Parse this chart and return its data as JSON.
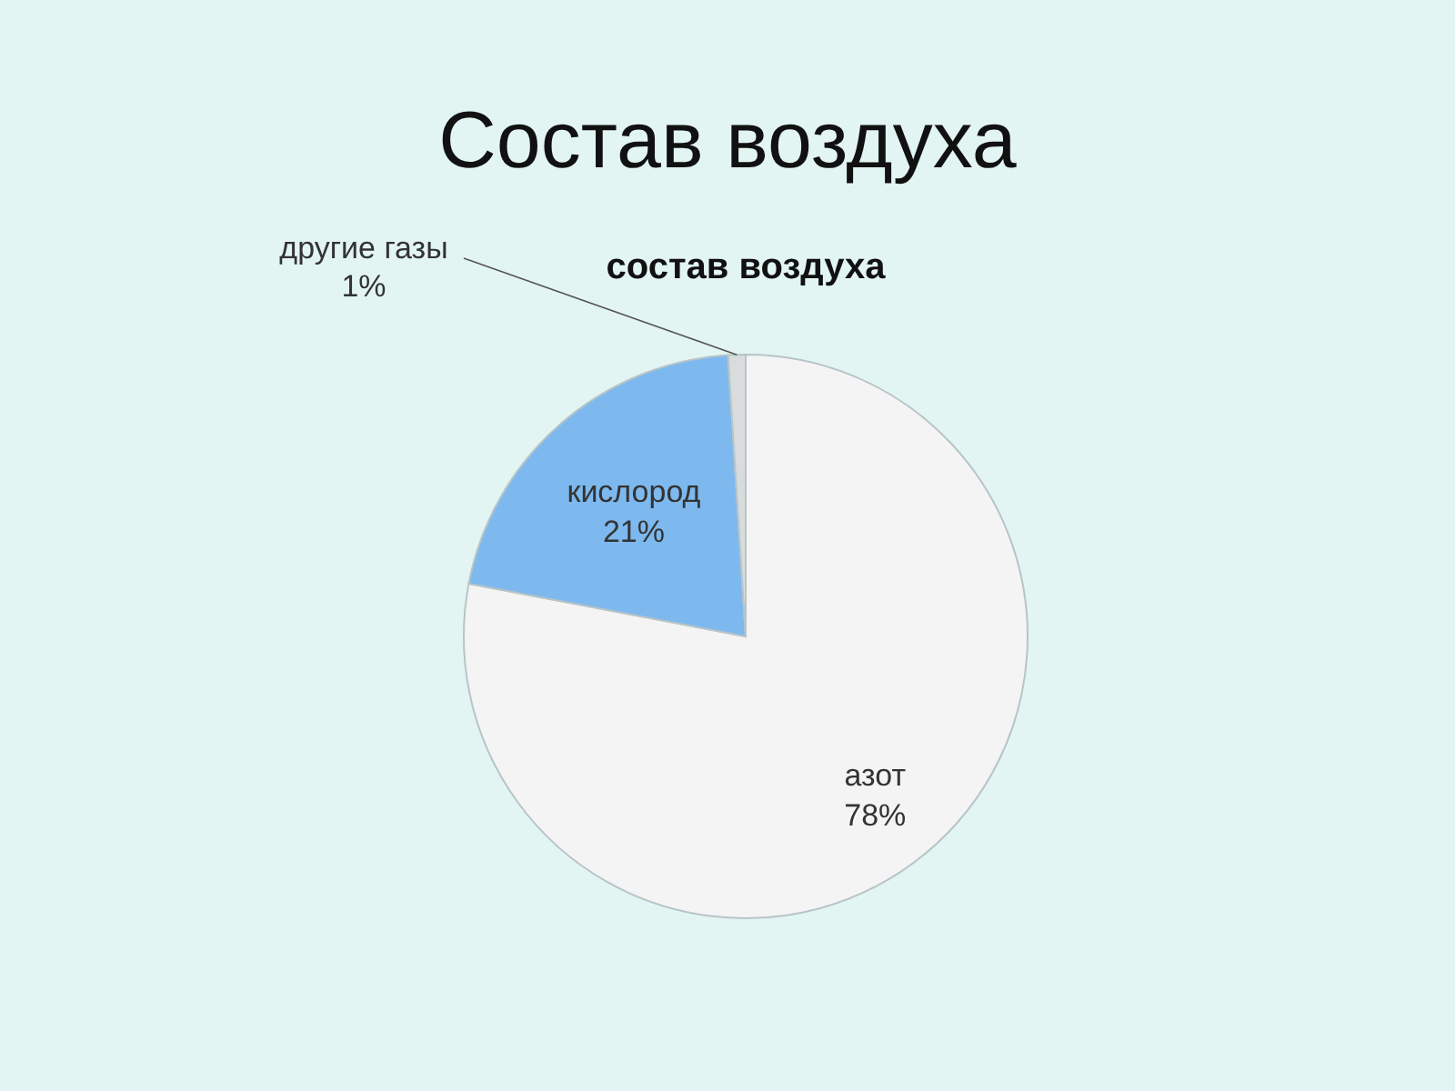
{
  "chart_data": {
    "type": "pie",
    "title": "Состав воздуха",
    "subtitle": "состав воздуха",
    "categories": [
      "азот",
      "кислород",
      "другие газы"
    ],
    "values": [
      78,
      21,
      1
    ],
    "colors": [
      "#f4f4f4",
      "#7db9ee",
      "#d8dcdc"
    ],
    "value_labels": [
      "78%",
      "21%",
      "1%"
    ]
  }
}
